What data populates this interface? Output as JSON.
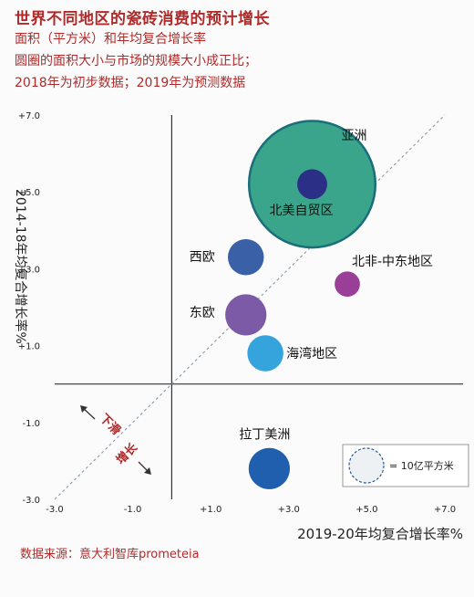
{
  "title": "世界不同地区的瓷砖消费的预计增长",
  "subtitle_lines": [
    "面积（平方米）和年均复合增长率",
    "圆圈的面积大小与市场的规模大小成正比；",
    "2018年为初步数据；2019年为预测数据"
  ],
  "source": "数据来源：意大利智库prometeia",
  "chart_data": {
    "type": "scatter",
    "xlabel": "2019-20年均复合增长率%",
    "ylabel": "2014-18年均复合增长率%",
    "xlim": [
      -3.0,
      7.0
    ],
    "ylim": [
      -3.0,
      7.0
    ],
    "x_ticks": [
      "-3.0",
      "-1.0",
      "+1.0",
      "+3.0",
      "+5.0",
      "+7.0"
    ],
    "x_tick_values": [
      -3,
      -1,
      1,
      3,
      5,
      7
    ],
    "y_ticks": [
      "+7.0",
      "+5.0",
      "+3.0",
      "+1.0",
      "-1.0",
      "-3.0"
    ],
    "y_tick_values": [
      7,
      5,
      3,
      1,
      -1,
      -3
    ],
    "grid": false,
    "diagonal": true,
    "quadrant_annotation": {
      "slow": "下滑",
      "growth": "增长"
    },
    "legend": {
      "label": "= 10亿平方米",
      "placement": "bottom-right"
    },
    "points": [
      {
        "name": "亚洲",
        "x": 3.6,
        "y": 5.2,
        "size": 8.0,
        "color": "#2c2f86",
        "ring": "#3aa58b"
      },
      {
        "name": "北美自贸区",
        "x": 3.6,
        "y": 5.2,
        "size": 0.45,
        "color": "#2c2f86"
      },
      {
        "name": "西欧",
        "x": 1.9,
        "y": 3.3,
        "size": 0.65,
        "color": "#3a61a8"
      },
      {
        "name": "北非-中东地区",
        "x": 4.5,
        "y": 2.6,
        "size": 0.32,
        "color": "#9a3f98"
      },
      {
        "name": "东欧",
        "x": 1.9,
        "y": 1.8,
        "size": 0.85,
        "color": "#7d5aa6"
      },
      {
        "name": "海湾地区",
        "x": 2.4,
        "y": 0.8,
        "size": 0.65,
        "color": "#35a3dc"
      },
      {
        "name": "拉丁美洲",
        "x": 2.5,
        "y": -2.2,
        "size": 0.85,
        "color": "#1f5fae"
      }
    ]
  }
}
